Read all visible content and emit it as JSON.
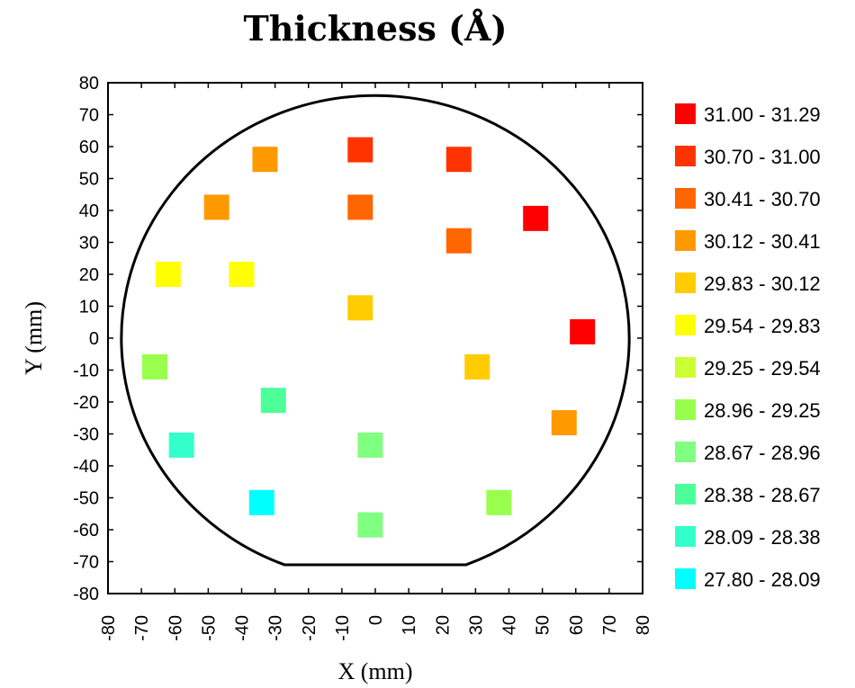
{
  "chart_data": {
    "type": "scatter",
    "title": "Thickness (Å)",
    "xlabel": "X (mm)",
    "ylabel": "Y (mm)",
    "xlim": [
      -80,
      80
    ],
    "ylim": [
      -80,
      80
    ],
    "x_ticks": [
      -80,
      -70,
      -60,
      -50,
      -40,
      -30,
      -20,
      -10,
      0,
      10,
      20,
      30,
      40,
      50,
      60,
      70,
      80
    ],
    "y_ticks": [
      80,
      70,
      60,
      50,
      40,
      30,
      20,
      10,
      0,
      -10,
      -20,
      -30,
      -40,
      -50,
      -60,
      -70,
      -80
    ],
    "grid": false,
    "legend_position": "right",
    "wafer_outline": {
      "radius": 76,
      "flat_y": -71
    },
    "legend": [
      {
        "label": "31.00 - 31.29",
        "color": "#ff0000"
      },
      {
        "label": "30.70 - 31.00",
        "color": "#ff3300"
      },
      {
        "label": "30.41 - 30.70",
        "color": "#ff6600"
      },
      {
        "label": "30.12 - 30.41",
        "color": "#ff9900"
      },
      {
        "label": "29.83 - 30.12",
        "color": "#ffcc00"
      },
      {
        "label": "29.54 - 29.83",
        "color": "#ffff00"
      },
      {
        "label": "29.25 - 29.54",
        "color": "#ccff33"
      },
      {
        "label": "28.96 - 29.25",
        "color": "#99ff4d"
      },
      {
        "label": "28.67 - 28.96",
        "color": "#80ff80"
      },
      {
        "label": "28.38 - 28.67",
        "color": "#4dff99"
      },
      {
        "label": "28.09 - 28.38",
        "color": "#33ffcc"
      },
      {
        "label": "27.80 - 28.09",
        "color": "#00ffff"
      }
    ],
    "points": [
      {
        "x": -4.5,
        "y": 59,
        "bin": 1
      },
      {
        "x": 25,
        "y": 56,
        "bin": 1
      },
      {
        "x": -33,
        "y": 56,
        "bin": 3
      },
      {
        "x": -4.5,
        "y": 41,
        "bin": 2
      },
      {
        "x": -47.5,
        "y": 41,
        "bin": 3
      },
      {
        "x": 48,
        "y": 37.5,
        "bin": 0
      },
      {
        "x": 25,
        "y": 30.5,
        "bin": 2
      },
      {
        "x": -62,
        "y": 20,
        "bin": 5
      },
      {
        "x": -40,
        "y": 20,
        "bin": 5
      },
      {
        "x": -4.5,
        "y": 9.5,
        "bin": 4
      },
      {
        "x": 62,
        "y": 2,
        "bin": 0
      },
      {
        "x": -66,
        "y": -9,
        "bin": 7
      },
      {
        "x": 30.5,
        "y": -9,
        "bin": 4
      },
      {
        "x": -30.5,
        "y": -19.5,
        "bin": 9
      },
      {
        "x": 56.5,
        "y": -26.5,
        "bin": 3
      },
      {
        "x": -58,
        "y": -33.5,
        "bin": 10
      },
      {
        "x": -1.5,
        "y": -33.5,
        "bin": 8
      },
      {
        "x": -34,
        "y": -51.5,
        "bin": 11
      },
      {
        "x": 37,
        "y": -51.5,
        "bin": 7
      },
      {
        "x": -1.5,
        "y": -58.5,
        "bin": 8
      }
    ]
  }
}
